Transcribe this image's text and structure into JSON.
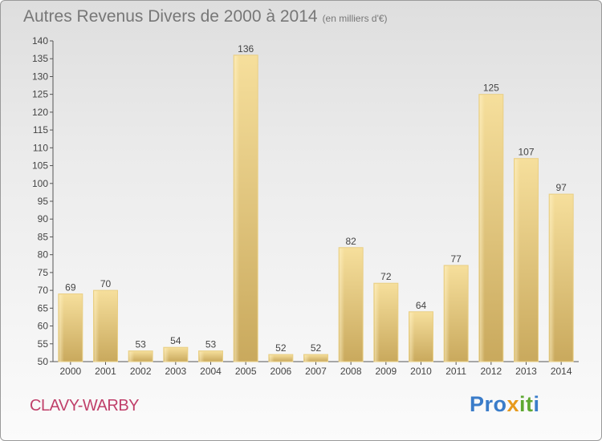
{
  "title": "Autres Revenus Divers de 2000 à 2014",
  "title_unit": "(en milliers d'€)",
  "city": "CLAVY-WARBY",
  "brand": "Proxiti",
  "colors": {
    "bar": "#e8c87c",
    "city": "#c0406a",
    "text": "#777777"
  },
  "chart_data": {
    "type": "bar",
    "title": "Autres Revenus Divers de 2000 à 2014",
    "subtitle": "(en milliers d'€)",
    "categories": [
      "2000",
      "2001",
      "2002",
      "2003",
      "2004",
      "2005",
      "2006",
      "2007",
      "2008",
      "2009",
      "2010",
      "2011",
      "2012",
      "2013",
      "2014"
    ],
    "values": [
      69,
      70,
      53,
      54,
      53,
      136,
      52,
      52,
      82,
      72,
      64,
      77,
      125,
      107,
      97
    ],
    "ylim": [
      50,
      140
    ],
    "yticks": [
      50,
      55,
      60,
      65,
      70,
      75,
      80,
      85,
      90,
      95,
      100,
      105,
      110,
      115,
      120,
      125,
      130,
      135,
      140
    ],
    "grid": false,
    "xlabel": "",
    "ylabel": ""
  }
}
